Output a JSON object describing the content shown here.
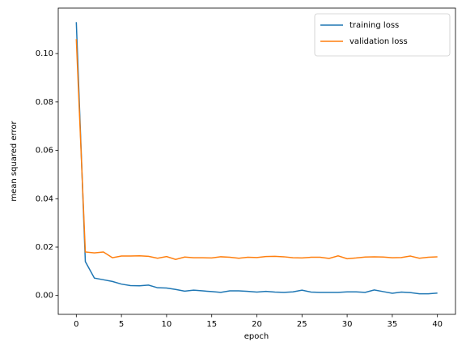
{
  "chart_data": {
    "type": "line",
    "x_label": "epoch",
    "y_label": "mean squared error",
    "x": [
      0,
      1,
      2,
      3,
      4,
      5,
      6,
      7,
      8,
      9,
      10,
      11,
      12,
      13,
      14,
      15,
      16,
      17,
      18,
      19,
      20,
      21,
      22,
      23,
      24,
      25,
      26,
      27,
      28,
      29,
      30,
      31,
      32,
      33,
      34,
      35,
      36,
      37,
      38,
      39,
      40
    ],
    "series": [
      {
        "name": "training loss",
        "color": "#1f77b4",
        "values": [
          0.113,
          0.014,
          0.0072,
          0.0065,
          0.0058,
          0.0047,
          0.0041,
          0.004,
          0.0043,
          0.0032,
          0.0031,
          0.0025,
          0.0018,
          0.0022,
          0.0019,
          0.0016,
          0.0013,
          0.0019,
          0.0019,
          0.0017,
          0.0014,
          0.0017,
          0.0014,
          0.0013,
          0.0015,
          0.0022,
          0.0014,
          0.0013,
          0.0013,
          0.0013,
          0.0015,
          0.0015,
          0.0013,
          0.0023,
          0.0016,
          0.0009,
          0.0014,
          0.0012,
          0.0007,
          0.0007,
          0.001
        ]
      },
      {
        "name": "validation loss",
        "color": "#ff7f0e",
        "values": [
          0.106,
          0.018,
          0.0176,
          0.018,
          0.0156,
          0.0163,
          0.0163,
          0.0164,
          0.0162,
          0.0154,
          0.0161,
          0.0149,
          0.0159,
          0.0156,
          0.0156,
          0.0155,
          0.016,
          0.0158,
          0.0154,
          0.0158,
          0.0157,
          0.0161,
          0.0162,
          0.016,
          0.0156,
          0.0155,
          0.0158,
          0.0158,
          0.0153,
          0.0164,
          0.0152,
          0.0155,
          0.0159,
          0.016,
          0.0159,
          0.0156,
          0.0157,
          0.0163,
          0.0154,
          0.0158,
          0.016
        ]
      }
    ],
    "xlim": [
      -2,
      42
    ],
    "ylim": [
      -0.0078,
      0.1188
    ],
    "xticks": [
      0,
      5,
      10,
      15,
      20,
      25,
      30,
      35,
      40
    ],
    "yticks": [
      {
        "value": 0,
        "label": "0.00"
      },
      {
        "value": 0.02,
        "label": "0.02"
      },
      {
        "value": 0.04,
        "label": "0.04"
      },
      {
        "value": 0.06,
        "label": "0.06"
      },
      {
        "value": 0.08,
        "label": "0.08"
      },
      {
        "value": 0.1,
        "label": "0.10"
      }
    ],
    "legend": "upper right"
  }
}
